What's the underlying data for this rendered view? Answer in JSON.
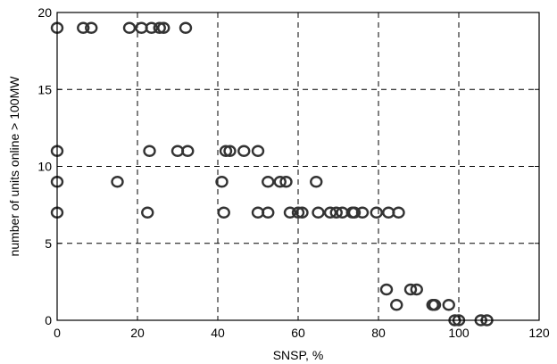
{
  "chart_data": {
    "type": "scatter",
    "title": "",
    "xlabel": "SNSP, %",
    "ylabel": "number of units online > 100MW",
    "xlim": [
      0,
      120
    ],
    "ylim": [
      0,
      20
    ],
    "xticks": [
      0,
      20,
      40,
      60,
      80,
      100,
      120
    ],
    "yticks": [
      0,
      5,
      10,
      15,
      20
    ],
    "grid": true,
    "marker": "open-circle",
    "marker_color": "#333333",
    "series": [
      {
        "points": [
          [
            0,
            19
          ],
          [
            6.5,
            19
          ],
          [
            8.5,
            19
          ],
          [
            18,
            19
          ],
          [
            21,
            19
          ],
          [
            23.5,
            19
          ],
          [
            25.5,
            19
          ],
          [
            26.5,
            19
          ],
          [
            32,
            19
          ],
          [
            0,
            11
          ],
          [
            23,
            11
          ],
          [
            30,
            11
          ],
          [
            32.5,
            11
          ],
          [
            42,
            11
          ],
          [
            43,
            11
          ],
          [
            46.5,
            11
          ],
          [
            50,
            11
          ],
          [
            0,
            9
          ],
          [
            15,
            9
          ],
          [
            41,
            9
          ],
          [
            52.5,
            9
          ],
          [
            55.5,
            9
          ],
          [
            57,
            9
          ],
          [
            64.5,
            9
          ],
          [
            0,
            7
          ],
          [
            22.5,
            7
          ],
          [
            41.5,
            7
          ],
          [
            50,
            7
          ],
          [
            52.5,
            7
          ],
          [
            58,
            7
          ],
          [
            60,
            7
          ],
          [
            61,
            7
          ],
          [
            65,
            7
          ],
          [
            68,
            7
          ],
          [
            69.5,
            7
          ],
          [
            71,
            7
          ],
          [
            73.5,
            7
          ],
          [
            74,
            7
          ],
          [
            76,
            7
          ],
          [
            79.5,
            7
          ],
          [
            82.5,
            7
          ],
          [
            85,
            7
          ],
          [
            82,
            2
          ],
          [
            88,
            2
          ],
          [
            89.5,
            2
          ],
          [
            84.5,
            1
          ],
          [
            93.5,
            1
          ],
          [
            94,
            1
          ],
          [
            97.5,
            1
          ],
          [
            99,
            0
          ],
          [
            100,
            0
          ],
          [
            105.5,
            0
          ],
          [
            107,
            0
          ]
        ]
      }
    ]
  }
}
